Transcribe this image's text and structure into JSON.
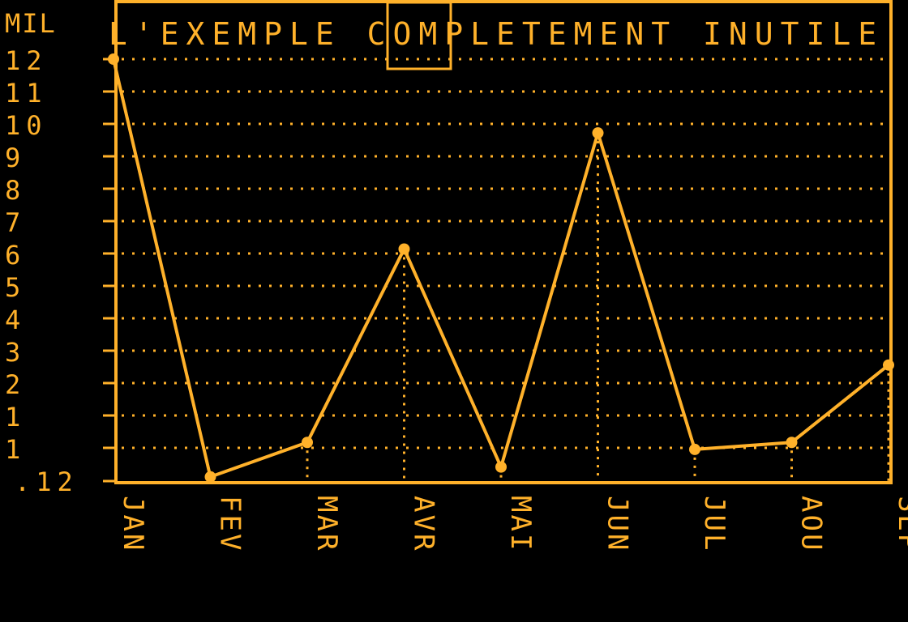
{
  "chart_data": {
    "type": "line",
    "title": "L'EXEMPLE COMPLETEMENT INUTILE",
    "unit_label": "MIL",
    "categories": [
      "JAN",
      "FEV",
      "MAR",
      "AVR",
      "MAI",
      "JUN",
      "JUL",
      "AOU",
      "SEP"
    ],
    "values": [
      12,
      0.12,
      1.1,
      6.6,
      0.4,
      9.9,
      0.9,
      1.1,
      3.3
    ],
    "y_tick_labels": [
      "12",
      "11",
      "10",
      "9",
      "8",
      "7",
      "6",
      "5",
      "4",
      "3",
      "2",
      "1",
      "1",
      ".12"
    ],
    "ylim": [
      0,
      13
    ],
    "grid": true,
    "color": "#ffb12a",
    "background": "#000000"
  }
}
